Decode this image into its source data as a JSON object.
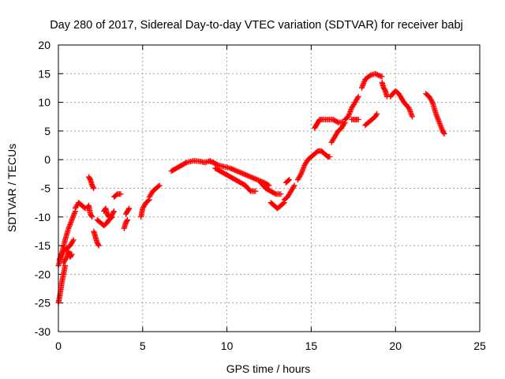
{
  "colors": {
    "series": "#ff0000",
    "grid": "#a0a0a0",
    "frame": "#000000"
  },
  "chart_data": {
    "type": "scatter",
    "marker": "plus",
    "title": "Day 280 of 2017, Sidereal Day-to-day VTEC variation (SDTVAR) for receiver babj",
    "xlabel": "GPS time / hours",
    "ylabel": "SDTVAR / TECUs",
    "xlim": [
      0,
      25
    ],
    "ylim": [
      -30,
      20
    ],
    "xticks": [
      0,
      5,
      10,
      15,
      20,
      25
    ],
    "yticks": [
      -30,
      -25,
      -20,
      -15,
      -10,
      -5,
      0,
      5,
      10,
      15,
      20
    ],
    "grid": true,
    "series": [
      {
        "name": "SDTVAR",
        "segments": [
          {
            "x": [
              0.0,
              0.2,
              0.4,
              0.6,
              0.8,
              1.0
            ],
            "y": [
              -18.5,
              -16.5,
              -14.0,
              -12.0,
              -10.5,
              -9.0
            ]
          },
          {
            "x": [
              0.05,
              0.25,
              0.5,
              0.7,
              0.9
            ],
            "y": [
              -17.5,
              -16.0,
              -15.5,
              -15.0,
              -14.0
            ]
          },
          {
            "x": [
              0.0,
              0.1,
              0.2,
              0.3,
              0.4
            ],
            "y": [
              -25.0,
              -23.5,
              -21.5,
              -20.0,
              -18.5
            ]
          },
          {
            "x": [
              0.3,
              0.5,
              0.6,
              0.7,
              0.8
            ],
            "y": [
              -18.0,
              -17.0,
              -16.0,
              -17.0,
              -16.5
            ]
          },
          {
            "x": [
              1.0,
              1.2,
              1.4,
              1.6
            ],
            "y": [
              -8.5,
              -7.5,
              -8.0,
              -8.5
            ]
          },
          {
            "x": [
              1.8,
              1.9,
              2.0,
              2.1
            ],
            "y": [
              -3.0,
              -3.5,
              -4.5,
              -5.0
            ]
          },
          {
            "x": [
              1.7,
              1.8,
              1.9,
              2.0
            ],
            "y": [
              -8.5,
              -8.0,
              -9.5,
              -10.0
            ]
          },
          {
            "x": [
              2.1,
              2.2,
              2.3,
              2.4
            ],
            "y": [
              -12.5,
              -13.5,
              -14.5,
              -15.0
            ]
          },
          {
            "x": [
              2.3,
              2.5,
              2.7,
              2.9,
              3.0,
              3.2
            ],
            "y": [
              -10.5,
              -11.0,
              -11.5,
              -11.0,
              -10.5,
              -10.0
            ]
          },
          {
            "x": [
              2.7,
              2.8,
              2.9,
              3.0
            ],
            "y": [
              -9.0,
              -8.5,
              -9.5,
              -10.0
            ]
          },
          {
            "x": [
              3.1,
              3.2,
              3.3
            ],
            "y": [
              -10.0,
              -9.5,
              -9.0
            ]
          },
          {
            "x": [
              3.3,
              3.5,
              3.7
            ],
            "y": [
              -6.5,
              -6.0,
              -6.0
            ]
          },
          {
            "x": [
              3.9,
              4.0,
              4.1
            ],
            "y": [
              -12.0,
              -11.0,
              -10.5
            ]
          },
          {
            "x": [
              4.0,
              4.1,
              4.2
            ],
            "y": [
              -9.5,
              -9.0,
              -8.5
            ]
          },
          {
            "x": [
              4.9,
              5.0,
              5.2,
              5.4
            ],
            "y": [
              -10.0,
              -8.5,
              -7.5,
              -7.0
            ]
          },
          {
            "x": [
              5.4,
              5.6,
              5.8,
              6.0
            ],
            "y": [
              -6.5,
              -5.5,
              -5.0,
              -4.5
            ]
          },
          {
            "x": [
              6.7,
              7.0,
              7.3,
              7.6,
              8.0,
              8.4,
              8.7,
              9.0
            ],
            "y": [
              -2.0,
              -1.5,
              -1.0,
              -0.5,
              -0.2,
              -0.3,
              -0.5,
              -0.2
            ]
          },
          {
            "x": [
              9.0,
              9.2,
              9.5,
              9.8,
              10.2,
              10.6,
              11.0,
              11.4,
              11.8,
              12.2,
              12.5
            ],
            "y": [
              -0.3,
              -0.5,
              -1.0,
              -1.2,
              -1.5,
              -2.0,
              -2.5,
              -3.0,
              -3.5,
              -4.0,
              -4.5
            ]
          },
          {
            "x": [
              9.3,
              9.6,
              9.9,
              10.2,
              10.5,
              10.8,
              11.1,
              11.4,
              11.7
            ],
            "y": [
              -1.5,
              -2.0,
              -2.5,
              -3.0,
              -3.5,
              -4.0,
              -4.5,
              -5.5,
              -5.5
            ]
          },
          {
            "x": [
              12.0,
              12.3,
              12.6,
              12.9,
              13.2
            ],
            "y": [
              -4.0,
              -5.0,
              -5.5,
              -6.0,
              -6.0
            ]
          },
          {
            "x": [
              12.6,
              12.8,
              13.0,
              13.2,
              13.4
            ],
            "y": [
              -7.5,
              -8.0,
              -8.5,
              -8.0,
              -7.5
            ]
          },
          {
            "x": [
              13.5,
              13.7
            ],
            "y": [
              -4.0,
              -3.5
            ]
          },
          {
            "x": [
              13.4,
              13.6,
              13.8,
              14.0
            ],
            "y": [
              -7.0,
              -6.5,
              -5.5,
              -4.5
            ]
          },
          {
            "x": [
              14.2,
              14.4,
              14.6,
              14.8,
              15.0,
              15.2,
              15.4,
              15.6,
              15.8,
              16.0,
              16.1
            ],
            "y": [
              -3.5,
              -2.5,
              -1.0,
              0.0,
              0.5,
              1.0,
              1.5,
              1.5,
              1.0,
              0.5,
              0.5
            ]
          },
          {
            "x": [
              15.2,
              15.3,
              15.4,
              15.5,
              15.7,
              16.0,
              16.3,
              16.6,
              16.9
            ],
            "y": [
              5.5,
              6.0,
              6.5,
              7.0,
              7.0,
              7.0,
              7.0,
              6.5,
              6.5
            ]
          },
          {
            "x": [
              16.2,
              16.4,
              16.6,
              16.8,
              17.0
            ],
            "y": [
              3.0,
              4.0,
              5.0,
              5.5,
              6.5
            ]
          },
          {
            "x": [
              17.0,
              17.2,
              17.4,
              17.6,
              17.8
            ],
            "y": [
              7.0,
              7.5,
              9.0,
              10.0,
              11.0
            ]
          },
          {
            "x": [
              17.4,
              17.6,
              17.8
            ],
            "y": [
              7.0,
              7.0,
              7.0
            ]
          },
          {
            "x": [
              18.0,
              18.2,
              18.5,
              18.8,
              19.0,
              19.2
            ],
            "y": [
              12.5,
              14.0,
              14.7,
              15.0,
              14.7,
              14.5
            ]
          },
          {
            "x": [
              18.2,
              18.4,
              18.6,
              18.8,
              18.9
            ],
            "y": [
              6.0,
              6.5,
              7.0,
              7.5,
              8.0
            ]
          },
          {
            "x": [
              19.2,
              19.3,
              19.4,
              19.5
            ],
            "y": [
              13.5,
              12.5,
              12.0,
              11.0
            ]
          },
          {
            "x": [
              19.7,
              20.0,
              20.2,
              20.5,
              20.8,
              21.0
            ],
            "y": [
              11.0,
              12.0,
              11.5,
              10.0,
              9.0,
              7.5
            ]
          },
          {
            "x": [
              21.8,
              22.0,
              22.2,
              22.4,
              22.6,
              22.8,
              22.9
            ],
            "y": [
              11.5,
              11.0,
              10.0,
              8.0,
              6.5,
              5.0,
              4.5
            ]
          }
        ]
      }
    ]
  }
}
